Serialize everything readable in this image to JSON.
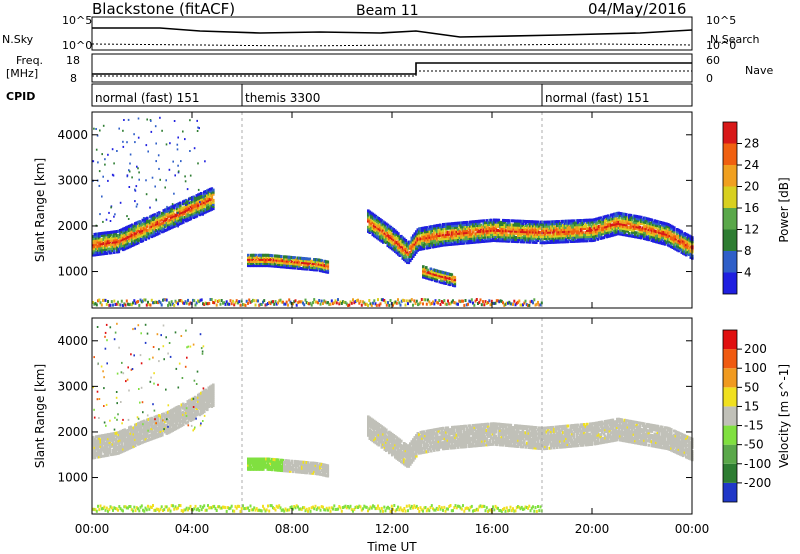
{
  "header": {
    "station": "Blackstone (fitACF)",
    "beam": "Beam 11",
    "date": "04/May/2016"
  },
  "top_panels": {
    "nsky_label": "N.Sky",
    "nsearch_label": "N.Search",
    "nsky_ticks": [
      "10^5",
      "10^0"
    ],
    "freq_label": "Freq.",
    "freq_unit": "[MHz]",
    "freq_ticks": [
      "18",
      "8"
    ],
    "nave_label": "Nave",
    "nave_ticks": [
      "60",
      "0"
    ],
    "cpid_label": "CPID",
    "cpid_segments": [
      {
        "name": "normal (fast) 151",
        "start_h": 0,
        "end_h": 6
      },
      {
        "name": "themis 3300",
        "start_h": 6,
        "end_h": 18
      },
      {
        "name": "normal (fast) 151",
        "start_h": 18,
        "end_h": 24
      }
    ]
  },
  "x_axis": {
    "title": "Time UT",
    "ticks": [
      "00:00",
      "04:00",
      "08:00",
      "12:00",
      "16:00",
      "20:00",
      "00:00"
    ]
  },
  "y_axis": {
    "title": "Slant Range [km]",
    "ticks": [
      "1000",
      "2000",
      "3000",
      "4000"
    ]
  },
  "power_colorbar": {
    "title": "Power [dB]",
    "ticks": [
      "4",
      "8",
      "12",
      "16",
      "20",
      "24",
      "28"
    ],
    "colors": [
      "#1f1fe0",
      "#2f5fc8",
      "#2e7d32",
      "#5aa84a",
      "#d8d020",
      "#f0a020",
      "#f06010",
      "#d81818"
    ]
  },
  "velocity_colorbar": {
    "title": "Velocity [m s^-1]",
    "ticks": [
      "200",
      "100",
      "50",
      "15",
      "-15",
      "-50",
      "-100",
      "-200"
    ],
    "colors": [
      "#2038c8",
      "#2e7d32",
      "#5aa84a",
      "#80e040",
      "#c0c0b8",
      "#f0e020",
      "#f09a20",
      "#f05a10",
      "#e01010"
    ]
  },
  "chart_data": [
    {
      "type": "heatmap",
      "title": "Power",
      "x_unit": "hours UT",
      "xlim": [
        0,
        24
      ],
      "ylim": [
        200,
        4500
      ],
      "echo_band_centers": [
        {
          "x": [
            0,
            1,
            2,
            3,
            4,
            4.8
          ],
          "y": [
            1580,
            1650,
            1900,
            2150,
            2400,
            2600
          ]
        },
        {
          "x": [
            6.2,
            7,
            8,
            9,
            9.4
          ],
          "y": [
            1250,
            1250,
            1200,
            1150,
            1100
          ]
        },
        {
          "x": [
            11,
            12,
            12.6,
            13,
            14,
            16,
            18,
            20,
            21,
            22,
            23,
            24
          ],
          "y": [
            2100,
            1700,
            1400,
            1700,
            1800,
            1900,
            1850,
            1900,
            2050,
            1950,
            1800,
            1500
          ]
        },
        {
          "x": [
            13.2,
            13.8,
            14.5
          ],
          "y": [
            1000,
            900,
            800
          ]
        }
      ]
    },
    {
      "type": "heatmap",
      "title": "Velocity",
      "x_unit": "hours UT",
      "xlim": [
        0,
        24
      ],
      "ylim": [
        200,
        4500
      ],
      "echo_band_centers": [
        {
          "x": [
            0,
            1,
            2,
            3,
            4,
            4.8
          ],
          "y": [
            1650,
            1750,
            2000,
            2200,
            2500,
            2800
          ]
        },
        {
          "x": [
            6.2,
            7,
            8,
            9,
            9.4
          ],
          "y": [
            1300,
            1300,
            1250,
            1200,
            1150
          ]
        },
        {
          "x": [
            11,
            12,
            12.6,
            13,
            14,
            16,
            18,
            20,
            21,
            22,
            23,
            24
          ],
          "y": [
            2100,
            1700,
            1450,
            1750,
            1850,
            1950,
            1850,
            1950,
            2050,
            1950,
            1850,
            1600
          ]
        }
      ]
    }
  ]
}
